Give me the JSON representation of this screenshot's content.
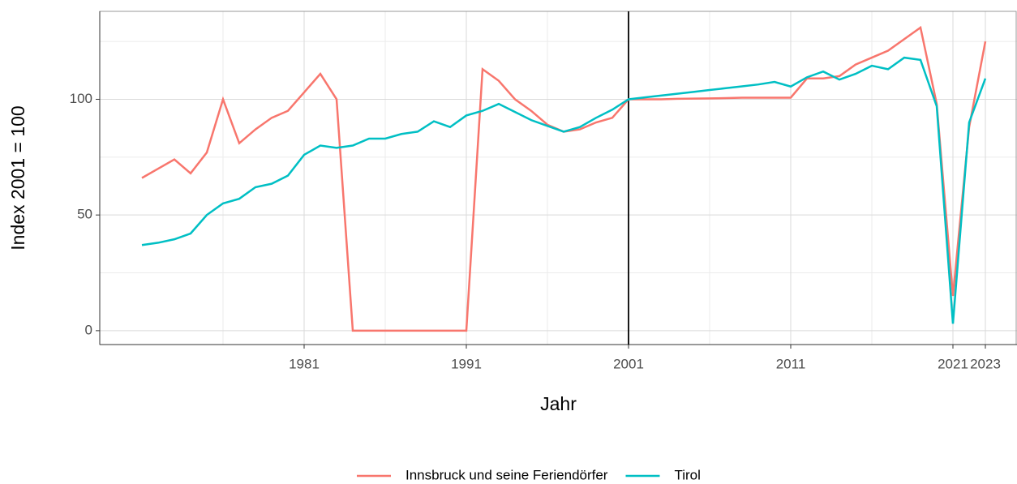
{
  "chart_data": {
    "type": "line",
    "xlabel": "Jahr",
    "ylabel": "Index 2001 = 100",
    "x": [
      1971,
      1972,
      1973,
      1974,
      1975,
      1976,
      1977,
      1978,
      1979,
      1980,
      1981,
      1982,
      1983,
      1984,
      1985,
      1986,
      1987,
      1988,
      1989,
      1990,
      1991,
      1992,
      1993,
      1994,
      1995,
      1996,
      1997,
      1998,
      1999,
      2000,
      2001,
      2002,
      2003,
      2004,
      2005,
      2006,
      2007,
      2008,
      2009,
      2010,
      2011,
      2012,
      2013,
      2014,
      2015,
      2016,
      2017,
      2018,
      2019,
      2020,
      2021,
      2022,
      2023
    ],
    "series": [
      {
        "name": "Innsbruck und seine Feriendörfer",
        "color": "#F8766D",
        "values": [
          66,
          70,
          74,
          68,
          77,
          100,
          81,
          87,
          92,
          95,
          103,
          111,
          100,
          0,
          0,
          0,
          0,
          0,
          0,
          0,
          0,
          113,
          108,
          100,
          95,
          89,
          86,
          87,
          90,
          92,
          100,
          100,
          100,
          100.2,
          100.3,
          100.4,
          100.5,
          100.7,
          100.7,
          100.7,
          100.7,
          109,
          109,
          110,
          115,
          118,
          121,
          126,
          131,
          98,
          15,
          88,
          125
        ]
      },
      {
        "name": "Tirol",
        "color": "#00BFC4",
        "values": [
          37,
          38,
          39.5,
          42,
          50,
          55,
          57,
          62,
          63.5,
          67,
          76,
          80,
          79,
          80,
          83,
          83,
          85,
          86,
          90.5,
          88,
          93,
          95,
          98,
          94.5,
          91,
          88.5,
          86,
          88,
          92,
          95.5,
          100,
          100.8,
          101.6,
          102.4,
          103.2,
          104,
          104.8,
          105.6,
          106.4,
          107.5,
          105.5,
          109.5,
          112,
          108.5,
          111,
          114.5,
          113,
          118,
          117,
          97,
          3,
          90,
          109
        ]
      }
    ],
    "xlim": [
      1968.4,
      2024.95
    ],
    "xticks": [
      1981,
      1991,
      2001,
      2011,
      2021,
      2023
    ],
    "ylim": [
      -6,
      138
    ],
    "yticks": [
      0,
      50,
      100
    ],
    "vline": 2001,
    "grid": true,
    "legend": "bottom"
  }
}
